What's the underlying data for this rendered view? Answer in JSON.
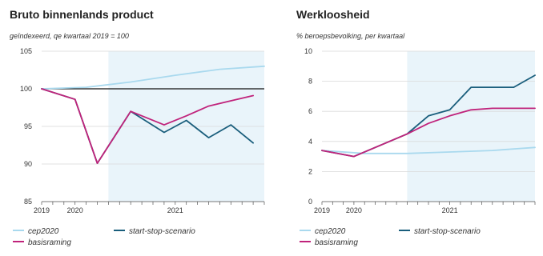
{
  "chart_data": [
    {
      "type": "line",
      "title": "Bruto binnenlands product",
      "ylabel": "geïndexeerd, qe kwartaal 2019 = 100",
      "ylim": [
        85,
        105
      ],
      "yticks": [
        85,
        90,
        95,
        100,
        105
      ],
      "xlabels": [
        "2019",
        "2020",
        "2021"
      ],
      "x_label_positions": [
        0,
        3,
        12
      ],
      "x": [
        0,
        1,
        2,
        3,
        4,
        5,
        6,
        7,
        8,
        9,
        10,
        11,
        12,
        13,
        14,
        15,
        16,
        17,
        18,
        19,
        20
      ],
      "shade_from": 6,
      "reference_line": 100,
      "series": [
        {
          "name": "cep2020",
          "color": "#a9d9ee",
          "x": [
            0,
            4,
            8,
            12,
            16,
            20
          ],
          "values": [
            100.0,
            100.2,
            100.9,
            101.8,
            102.6,
            103.0
          ]
        },
        {
          "name": "start-stop-scenario",
          "color": "#1a5e7c",
          "x": [
            0,
            3,
            5,
            8,
            11,
            13,
            15,
            17,
            19
          ],
          "values": [
            100.0,
            98.6,
            90.1,
            97.0,
            94.2,
            95.8,
            93.5,
            95.2,
            92.8
          ]
        },
        {
          "name": "basisraming",
          "color": "#c0237b",
          "x": [
            0,
            3,
            5,
            8,
            11,
            13,
            15,
            17,
            19
          ],
          "values": [
            100.0,
            98.6,
            90.1,
            97.0,
            95.2,
            96.4,
            97.7,
            98.4,
            99.1
          ]
        }
      ]
    },
    {
      "type": "line",
      "title": "Werkloosheid",
      "ylabel": "% beroepsbevolking, per kwartaal",
      "ylim": [
        0,
        10
      ],
      "yticks": [
        0,
        2,
        4,
        6,
        8,
        10
      ],
      "xlabels": [
        "2019",
        "2020",
        "2021"
      ],
      "x_label_positions": [
        0,
        3,
        12
      ],
      "x": [
        0,
        1,
        2,
        3,
        4,
        5,
        6,
        7,
        8,
        9,
        10,
        11,
        12,
        13,
        14,
        15,
        16,
        17,
        18,
        19,
        20
      ],
      "shade_from": 8,
      "series": [
        {
          "name": "cep2020",
          "color": "#a9d9ee",
          "x": [
            0,
            4,
            8,
            12,
            16,
            20
          ],
          "values": [
            3.4,
            3.2,
            3.2,
            3.3,
            3.4,
            3.6
          ]
        },
        {
          "name": "start-stop-scenario",
          "color": "#1a5e7c",
          "x": [
            0,
            3,
            6,
            8,
            10,
            12,
            14,
            16,
            18,
            20
          ],
          "values": [
            3.4,
            3.0,
            3.9,
            4.5,
            5.7,
            6.1,
            7.6,
            7.6,
            7.6,
            8.4
          ]
        },
        {
          "name": "basisraming",
          "color": "#c0237b",
          "x": [
            0,
            3,
            6,
            8,
            10,
            12,
            14,
            16,
            18,
            20
          ],
          "values": [
            3.4,
            3.0,
            3.9,
            4.5,
            5.2,
            5.7,
            6.1,
            6.2,
            6.2,
            6.2
          ]
        }
      ]
    }
  ]
}
